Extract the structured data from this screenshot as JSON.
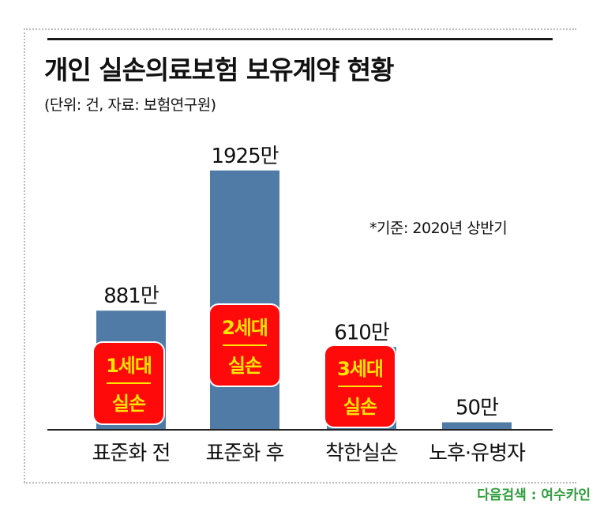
{
  "header": {
    "title": "개인 실손의료보험 보유계약 현황",
    "subtitle": "(단위: 건, 자료: 보험연구원)"
  },
  "note": "*기준: 2020년 상반기",
  "watermark": "다음검색 : 여수카인",
  "colors": {
    "bar": "#4f7ba6",
    "badge_fill": "#ff0a0a",
    "badge_text": "#ffe600",
    "badge_border": "#ffffff"
  },
  "chart_data": {
    "type": "bar",
    "categories": [
      "표준화 전",
      "표준화 후",
      "착한실손",
      "노후·유병자"
    ],
    "values": [
      881,
      1925,
      610,
      50
    ],
    "value_labels": [
      "881만",
      "1925만",
      "610만",
      "50만"
    ],
    "unit": "만 건",
    "ylim": [
      0,
      2000
    ],
    "grid": false,
    "legend": "none",
    "badges": [
      {
        "category": "표준화 전",
        "line1": "1세대",
        "line2": "실손"
      },
      {
        "category": "표준화 후",
        "line1": "2세대",
        "line2": "실손"
      },
      {
        "category": "착한실손",
        "line1": "3세대",
        "line2": "실손"
      }
    ]
  }
}
